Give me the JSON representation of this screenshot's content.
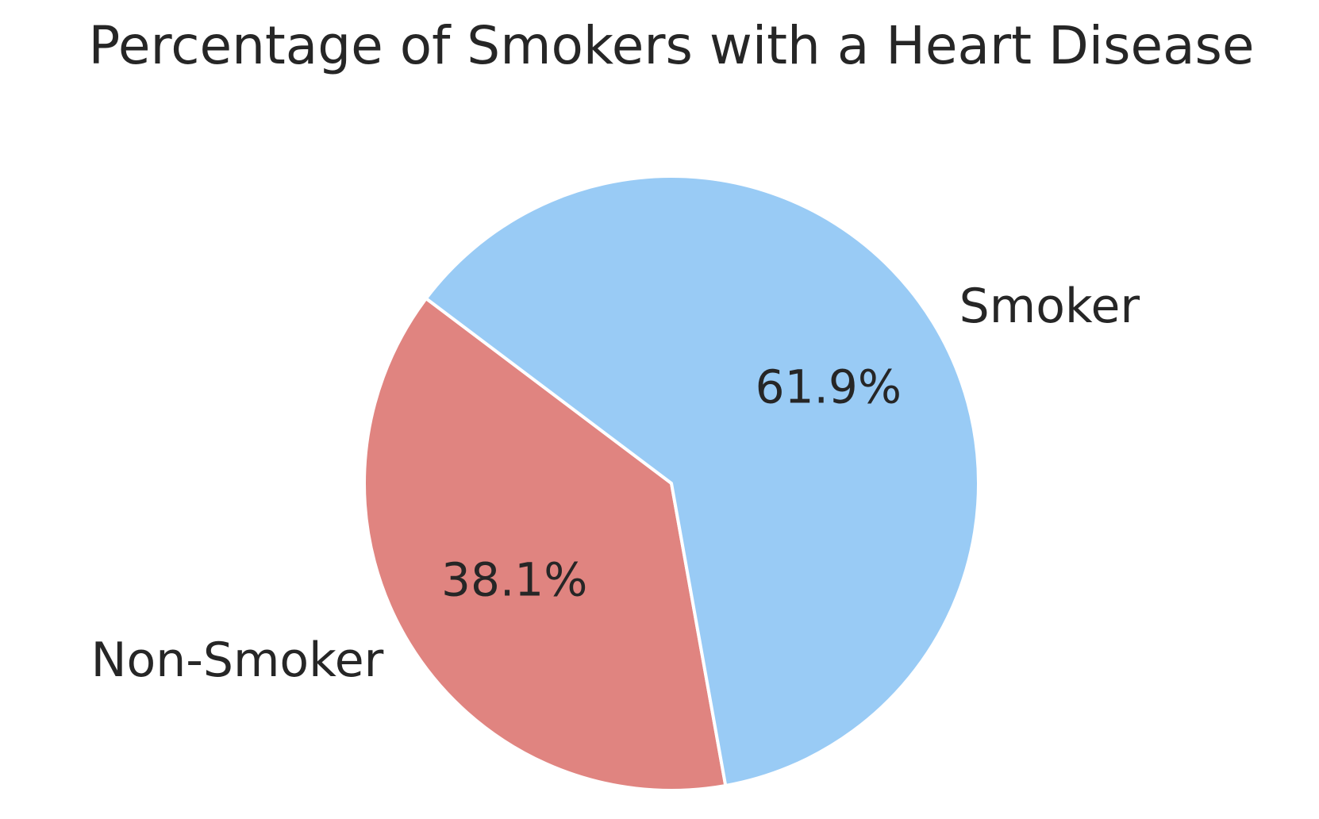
{
  "chart_data": {
    "type": "pie",
    "title": "Percentage of Smokers with a Heart Disease",
    "slices": [
      {
        "label": "Non-Smoker",
        "value": 38.1,
        "percent_label": "38.1%",
        "color": "#e08480"
      },
      {
        "label": "Smoker",
        "value": 61.9,
        "percent_label": "61.9%",
        "color": "#99cbf5"
      }
    ],
    "start_angle_deg": 143,
    "direction": "counterclockwise",
    "wedge_edge_color": "#ffffff",
    "legend": "none"
  }
}
